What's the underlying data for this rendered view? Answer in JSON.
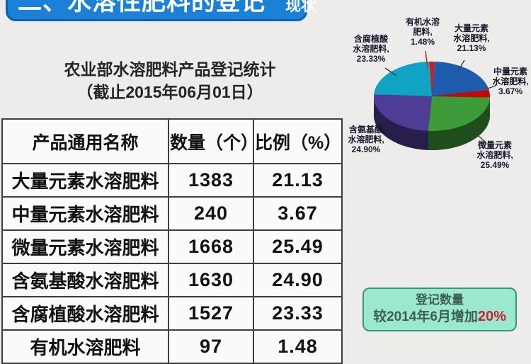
{
  "title": {
    "main": "二、水溶性肥料的登记",
    "suffix": "现状"
  },
  "subtitle": {
    "line1": "农业部水溶肥料产品登记统计",
    "line2": "（截止2015年06月01日）"
  },
  "table": {
    "headers": [
      "产品通用名称",
      "数量（个）",
      "比例（%）"
    ],
    "rows": [
      {
        "name": "大量元素水溶肥料",
        "count": "1383",
        "pct": "21.13"
      },
      {
        "name": "中量元素水溶肥料",
        "count": "240",
        "pct": "3.67"
      },
      {
        "name": "微量元素水溶肥料",
        "count": "1668",
        "pct": "25.49"
      },
      {
        "name": "含氨基酸水溶肥料",
        "count": "1630",
        "pct": "24.90"
      },
      {
        "name": "含腐植酸水溶肥料",
        "count": "1527",
        "pct": "23.33"
      },
      {
        "name": "有机水溶肥料",
        "count": "97",
        "pct": "1.48"
      }
    ]
  },
  "chart_data": {
    "type": "pie",
    "style": "3d",
    "legend_position": "callout-labels",
    "slices": [
      {
        "label": "有机水溶肥料",
        "value": 1.48,
        "color": "#cf1d1d",
        "display": "有机水溶\n肥料,\n1.48%"
      },
      {
        "label": "大量元素水溶肥料",
        "value": 21.13,
        "color": "#1e5cae",
        "display": "大量元素\n水溶肥料,\n21.13%"
      },
      {
        "label": "中量元素水溶肥料",
        "value": 3.67,
        "color": "#c00b0b",
        "display": "中量元素\n水溶肥料,\n3.67%"
      },
      {
        "label": "微量元素水溶肥料",
        "value": 25.49,
        "color": "#3d9b3a",
        "display": "微量元素\n水溶肥料,\n25.49%"
      },
      {
        "label": "含氨基酸水溶肥料",
        "value": 24.9,
        "color": "#4e3c96",
        "display": "含氨基酸\n水溶肥料,\n24.90%"
      },
      {
        "label": "含腐植酸水溶肥料",
        "value": 23.33,
        "color": "#0fa4c4",
        "display": "含腐植酸\n水溶肥料,\n23.33%"
      }
    ]
  },
  "callout": {
    "line1": "登记数量",
    "line2_prefix": "较2014年6月增加",
    "line2_highlight": "20%"
  }
}
